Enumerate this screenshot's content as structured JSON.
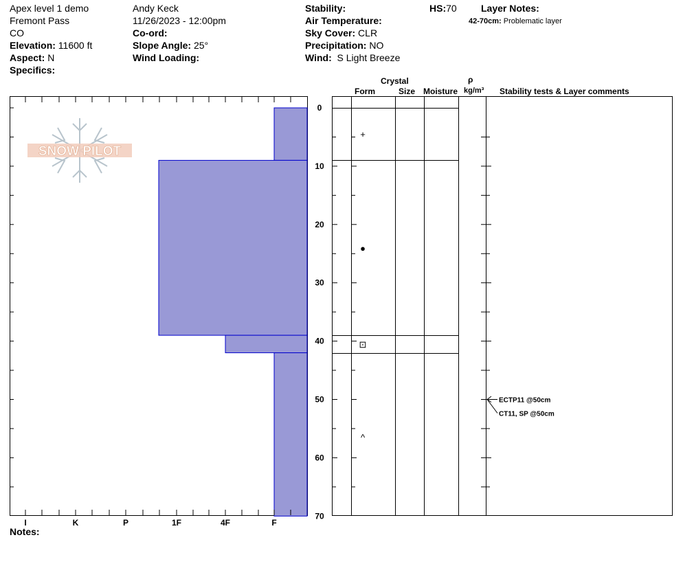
{
  "header": {
    "col1": {
      "site_name": "Apex level 1 demo",
      "location": "Fremont Pass",
      "state": "CO",
      "elevation_label": "Elevation:",
      "elevation_value": "11600 ft",
      "aspect_label": "Aspect:",
      "aspect_value": "N",
      "specifics_label": "Specifics:"
    },
    "col2": {
      "observer": "Andy Keck",
      "datetime": "11/26/2023 - 12:00pm",
      "coord_label": "Co-ord:",
      "slope_label": "Slope Angle:",
      "slope_value": "25°",
      "wind_loading_label": "Wind Loading:"
    },
    "col3": {
      "stability_label": "Stability:",
      "air_temp_label": "Air Temperature:",
      "sky_label": "Sky Cover:",
      "sky_value": "CLR",
      "precip_label": "Precipitation:",
      "precip_value": "NO",
      "wind_label": "Wind:",
      "wind_value": "S Light Breeze"
    },
    "hs_label": "HS:",
    "hs_value": "70",
    "layer_notes_label": "Layer Notes:",
    "layer_note_range": "42-70cm:",
    "layer_note_text": "Problematic layer"
  },
  "logo": {
    "text": "SNOW PILOT",
    "color": "#e8b8a0"
  },
  "columns": {
    "crystal_label": "Crystal",
    "form_label": "Form",
    "size_label": "Size",
    "moisture_label": "Moisture",
    "density_symbol": "ρ",
    "density_unit": "kg/m³",
    "stability_label": "Stability tests & Layer comments"
  },
  "notes_label": "Notes:",
  "colors": {
    "hardness_fill": "#9999d6",
    "hardness_stroke": "#0000cc"
  },
  "chart_data": {
    "type": "bar",
    "orientation": "horizontal-profile",
    "y_axis": {
      "label": "",
      "unit": "cm",
      "range": [
        0,
        70
      ],
      "inverted": true,
      "ticks": [
        0,
        10,
        20,
        30,
        40,
        50,
        60,
        70
      ]
    },
    "x_axis": {
      "categories": [
        "I",
        "K",
        "P",
        "1F",
        "4F",
        "F"
      ]
    },
    "layers": [
      {
        "top": 0,
        "bottom": 9,
        "hardness": "F"
      },
      {
        "top": 9,
        "bottom": 39,
        "hardness": "1F-"
      },
      {
        "top": 39,
        "bottom": 42,
        "hardness": "4F"
      },
      {
        "top": 42,
        "bottom": 70,
        "hardness": "F"
      }
    ],
    "grain_forms": [
      {
        "depth": 4.5,
        "symbol": "+"
      },
      {
        "depth": 24,
        "symbol": "●"
      },
      {
        "depth": 40.5,
        "symbol": "⊡"
      },
      {
        "depth": 56.5,
        "symbol": "^"
      }
    ],
    "layer_boundaries": [
      0,
      9,
      39,
      42
    ],
    "stability_tests": [
      {
        "depth": 50,
        "label": "ECTP11 @50cm"
      },
      {
        "depth": 50,
        "label": "CT11, SP @50cm"
      }
    ]
  }
}
